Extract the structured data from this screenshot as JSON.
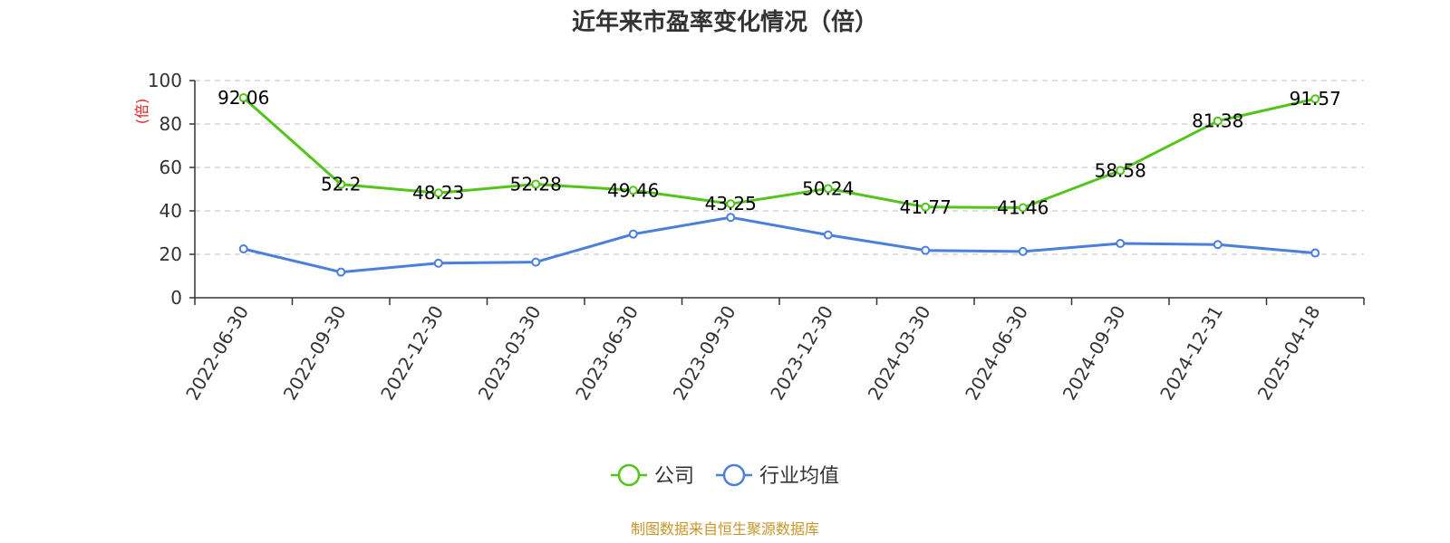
{
  "chart_data": {
    "type": "line",
    "title": "近年来市盈率变化情况（倍）",
    "ylabel": "(倍)",
    "ylim": [
      0,
      100
    ],
    "yticks": [
      0,
      20,
      40,
      60,
      80,
      100
    ],
    "grid": true,
    "legend_position": "bottom",
    "categories": [
      "2022-06-30",
      "2022-09-30",
      "2022-12-30",
      "2023-03-30",
      "2023-06-30",
      "2023-09-30",
      "2023-12-30",
      "2024-03-30",
      "2024-06-30",
      "2024-09-30",
      "2024-12-31",
      "2025-04-18"
    ],
    "series": [
      {
        "name": "公司",
        "color": "#52c41a",
        "values": [
          92.06,
          52.2,
          48.23,
          52.28,
          49.46,
          43.25,
          50.24,
          41.77,
          41.46,
          58.58,
          81.38,
          91.57
        ],
        "labels": [
          "92.06",
          "52.2",
          "48.23",
          "52.28",
          "49.46",
          "43.25",
          "50.24",
          "41.77",
          "41.46",
          "58.58",
          "81.38",
          "91.57"
        ]
      },
      {
        "name": "行业均值",
        "color": "#4a7fdb",
        "values": [
          22.5,
          11.8,
          15.9,
          16.4,
          29.3,
          37.0,
          28.9,
          21.8,
          21.3,
          25.0,
          24.5,
          20.6
        ]
      }
    ]
  },
  "source": "制图数据来自恒生聚源数据库",
  "colors": {
    "ylabel": "#e02020",
    "source": "#c8962a",
    "grid": "#cccccc",
    "axis": "#333333"
  }
}
